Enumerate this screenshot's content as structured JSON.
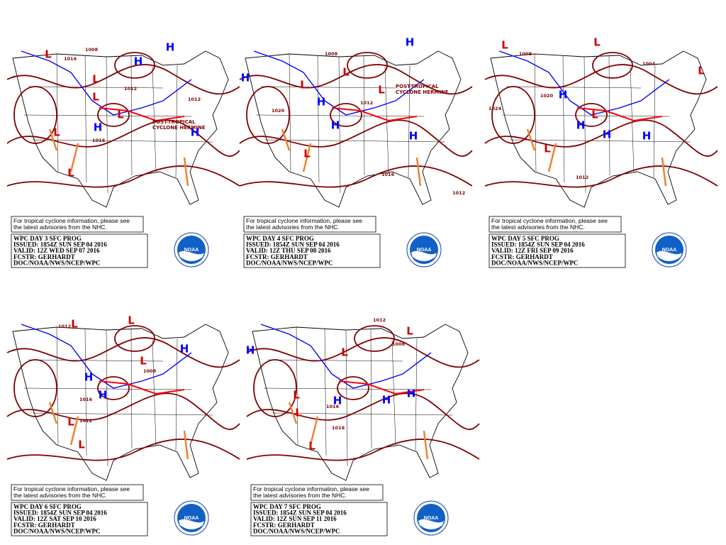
{
  "panels": [
    {
      "note": [
        "For tropical cyclone information, please see",
        "the latest advisories from the NHC."
      ],
      "info": [
        "WPC DAY 3 SFC PROG",
        "ISSUED: 1854Z SUN SEP 04 2016",
        "VALID: 12Z WED SEP 07 2016",
        "FCSTR: GERHARDT",
        "DOC/NOAA/NWS/NCEP/WPC"
      ],
      "centers": [
        "L",
        "H",
        "L",
        "H",
        "L",
        "L",
        "H",
        "H",
        "L",
        "L"
      ],
      "isobars": [
        "1016",
        "1008",
        "1012",
        "1016",
        "1012"
      ],
      "annotation": [
        "POST-TROPICAL",
        "CYCLONE HERMINE"
      ]
    },
    {
      "note": [
        "For tropical cyclone information, please see",
        "the latest advisories from the NHC."
      ],
      "info": [
        "WPC DAY 4 SFC PROG",
        "ISSUED: 1854Z SUN SEP 04 2016",
        "VALID: 12Z THU SEP 08 2016",
        "FCSTR: GERHARDT",
        "DOC/NOAA/NWS/NCEP/WPC"
      ],
      "centers": [
        "H",
        "L",
        "H",
        "L",
        "H",
        "H",
        "L",
        "L",
        "H"
      ],
      "isobars": [
        "1008",
        "1020",
        "1012",
        "1016",
        "1012"
      ],
      "annotation": [
        "POST-TROPICAL",
        "CYCLONE HERMINE"
      ]
    },
    {
      "note": [
        "For tropical cyclone information, please see",
        "the latest advisories from the NHC."
      ],
      "info": [
        "WPC DAY 5 SFC PROG",
        "ISSUED: 1854Z SUN SEP 04 2016",
        "VALID: 12Z FRI SEP 09 2016",
        "FCSTR: GERHARDT",
        "DOC/NOAA/NWS/NCEP/WPC"
      ],
      "centers": [
        "L",
        "L",
        "H",
        "H",
        "L",
        "H",
        "H",
        "L",
        "L"
      ],
      "isobars": [
        "1008",
        "1020",
        "1024",
        "1012",
        "1004"
      ],
      "annotation": []
    },
    {
      "note": [
        "For tropical cyclone information, please see",
        "the latest advisories from the NHC."
      ],
      "info": [
        "WPC DAY 6 SFC PROG",
        "ISSUED: 1854Z SUN SEP 04 2016",
        "VALID: 12Z SAT SEP 10 2016",
        "FCSTR: GERHARDT",
        "DOC/NOAA/NWS/NCEP/WPC"
      ],
      "centers": [
        "L",
        "L",
        "H",
        "H",
        "L",
        "H",
        "L",
        "L"
      ],
      "isobars": [
        "1012",
        "1016",
        "1012",
        "1008"
      ],
      "annotation": []
    },
    {
      "note": [
        "For tropical cyclone information, please see",
        "the latest advisories from the NHC."
      ],
      "info": [
        "WPC DAY 7 SFC PROG",
        "ISSUED: 1854Z SUN SEP 04 2016",
        "VALID: 12Z SUN SEP 11 2016",
        "FCSTR: GERHARDT",
        "DOC/NOAA/NWS/NCEP/WPC"
      ],
      "centers": [
        "H",
        "L",
        "L",
        "L",
        "H",
        "H",
        "H",
        "L",
        "L"
      ],
      "isobars": [
        "1012",
        "1008",
        "1016",
        "1016"
      ],
      "annotation": []
    }
  ],
  "logo": "NOAA"
}
